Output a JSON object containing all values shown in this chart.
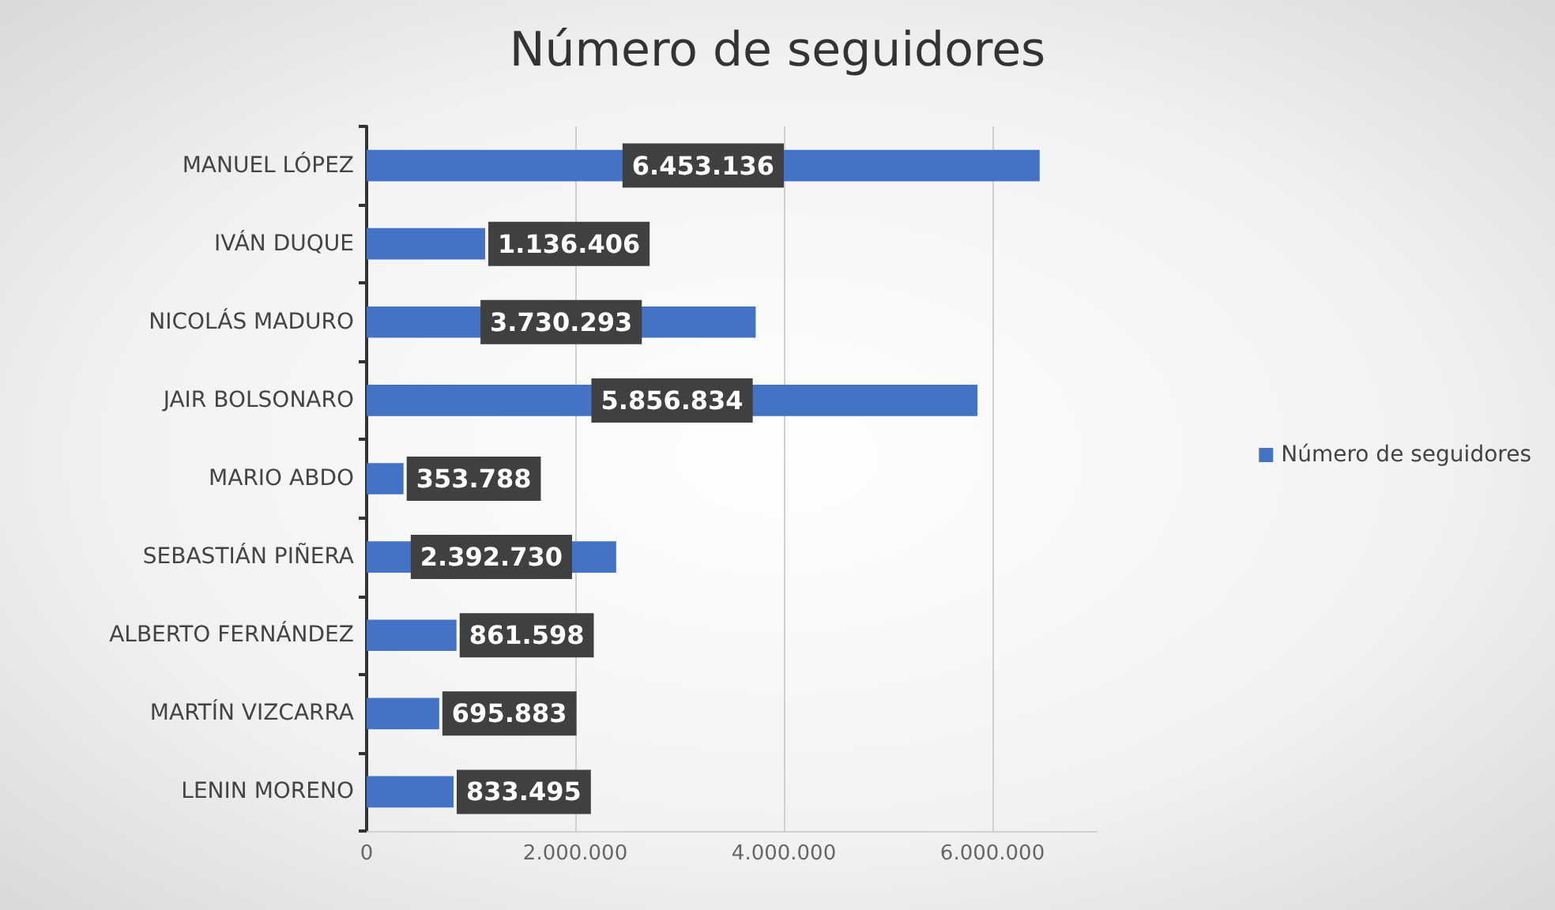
{
  "chart_data": {
    "type": "bar",
    "orientation": "horizontal",
    "title": "Número de seguidores",
    "categories": [
      "MANUEL LÓPEZ",
      "IVÁN DUQUE",
      "NICOLÁS MADURO",
      "JAIR BOLSONARO",
      "MARIO ABDO",
      "SEBASTIÁN PIÑERA",
      "ALBERTO FERNÁNDEZ",
      "MARTÍN VIZCARRA",
      "LENIN MORENO"
    ],
    "series": [
      {
        "name": "Número de seguidores",
        "color": "#4472c4",
        "values": [
          6453136,
          1136406,
          3730293,
          5856834,
          353788,
          2392730,
          861598,
          695883,
          833495
        ],
        "value_labels": [
          "6.453.136",
          "1.136.406",
          "3.730.293",
          "5.856.834",
          "353.788",
          "2.392.730",
          "861.598",
          "695.883",
          "833.495"
        ]
      }
    ],
    "xlim": [
      0,
      7000000
    ],
    "xticks": [
      {
        "value": 0,
        "label": "0"
      },
      {
        "value": 2000000,
        "label": "2.000.000"
      },
      {
        "value": 4000000,
        "label": "4.000.000"
      },
      {
        "value": 6000000,
        "label": "6.000.000"
      }
    ],
    "grid": "x",
    "legend": "right"
  }
}
